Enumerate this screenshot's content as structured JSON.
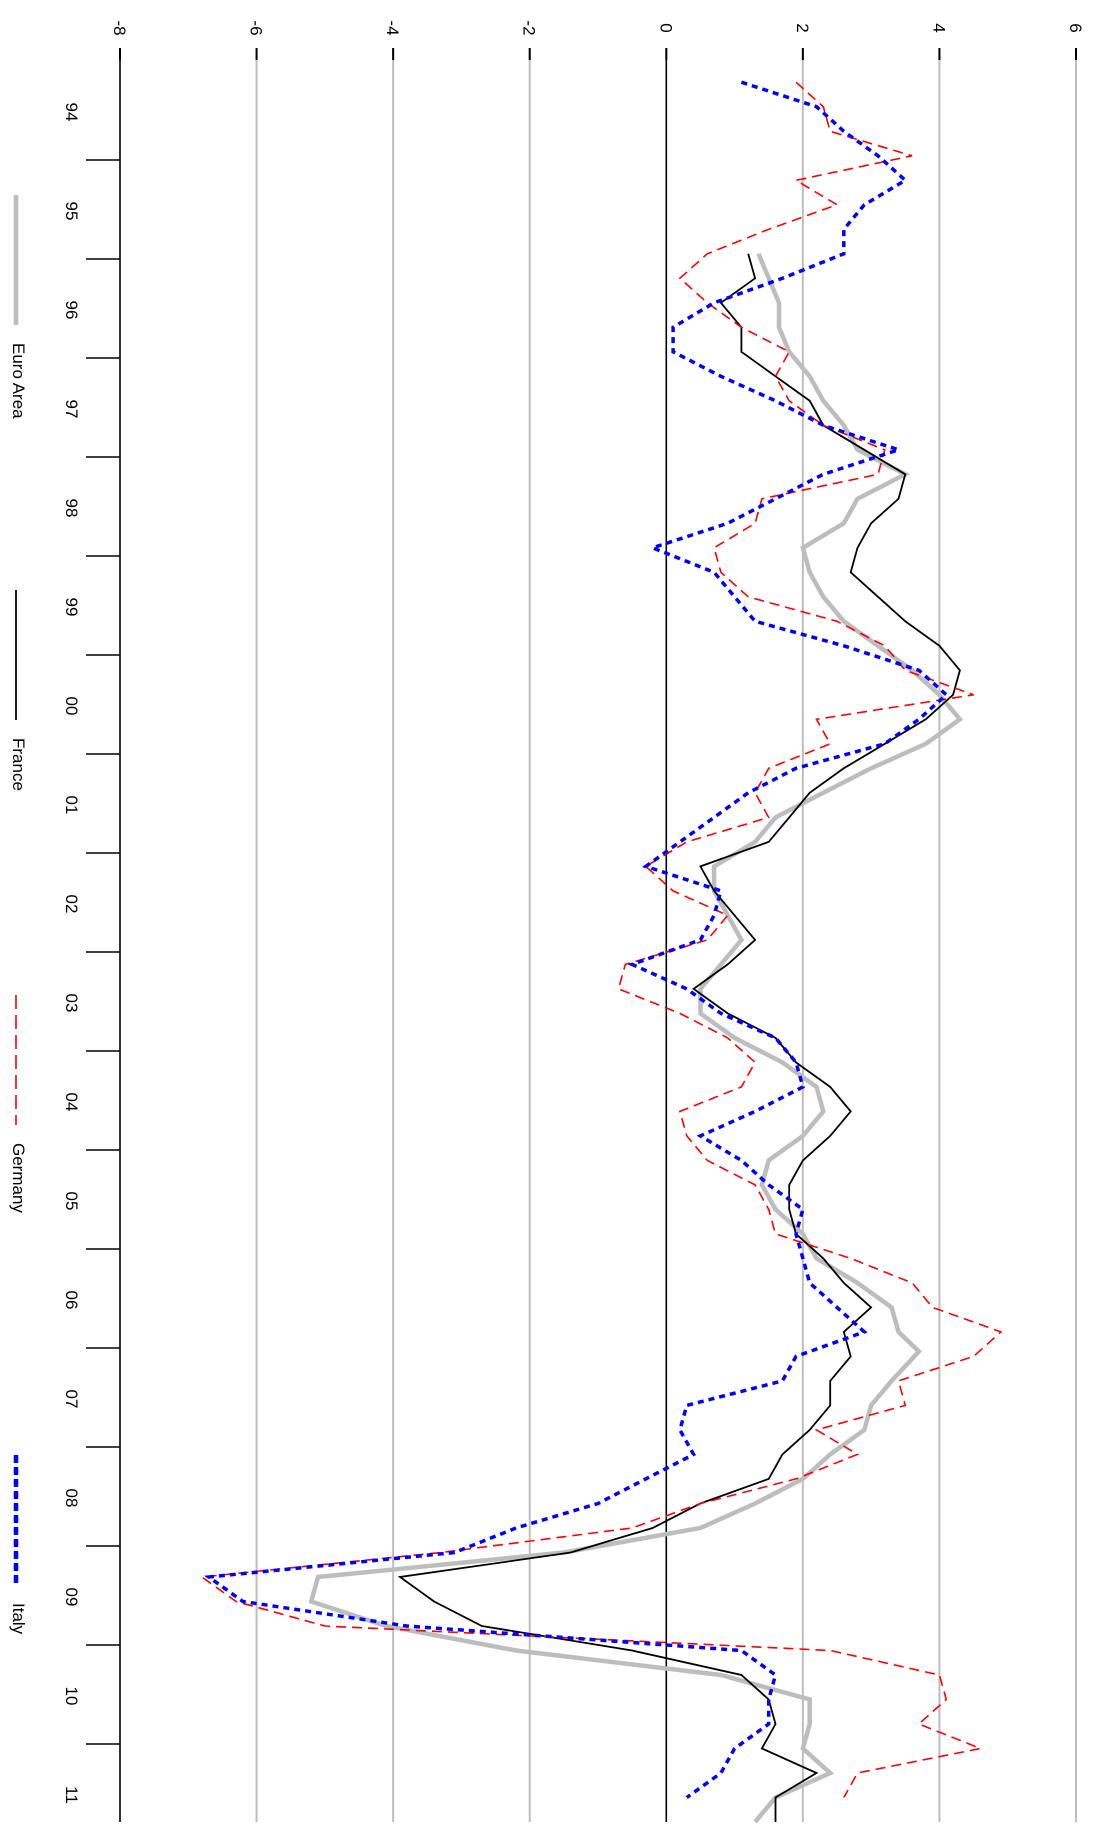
{
  "chart_data": {
    "type": "line",
    "orientation": "rotated-90-clockwise",
    "y_ticks": [
      "-8",
      "-6",
      "-4",
      "-2",
      "0",
      "2",
      "4",
      "6"
    ],
    "ylim": [
      -8,
      6
    ],
    "grid": true,
    "x_tick_labels": [
      "94",
      "95",
      "96",
      "97",
      "98",
      "99",
      "00",
      "01",
      "02",
      "03",
      "04",
      "05",
      "06",
      "07",
      "08",
      "09",
      "10",
      "11"
    ],
    "x_range": [
      1993.62,
      2011.75
    ],
    "legend_position": "bottom",
    "series": [
      {
        "name": "Euro Area",
        "color": "#bdbdbd",
        "style": "thick",
        "points": [
          [
            1995.75,
            1.35
          ],
          [
            1996.0,
            1.5
          ],
          [
            1996.25,
            1.65
          ],
          [
            1996.5,
            1.65
          ],
          [
            1996.75,
            1.8
          ],
          [
            1997.0,
            2.1
          ],
          [
            1997.25,
            2.3
          ],
          [
            1997.5,
            2.6
          ],
          [
            1997.75,
            2.8
          ],
          [
            1998.0,
            3.5
          ],
          [
            1998.25,
            2.8
          ],
          [
            1998.5,
            2.6
          ],
          [
            1998.75,
            2.0
          ],
          [
            1999.0,
            2.1
          ],
          [
            1999.25,
            2.3
          ],
          [
            1999.5,
            2.6
          ],
          [
            1999.75,
            3.1
          ],
          [
            2000.0,
            3.6
          ],
          [
            2000.25,
            4.0
          ],
          [
            2000.5,
            4.3
          ],
          [
            2000.75,
            3.8
          ],
          [
            2001.0,
            3.0
          ],
          [
            2001.25,
            2.3
          ],
          [
            2001.5,
            1.6
          ],
          [
            2001.75,
            1.3
          ],
          [
            2002.0,
            0.7
          ],
          [
            2002.25,
            0.7
          ],
          [
            2002.5,
            0.9
          ],
          [
            2002.75,
            1.1
          ],
          [
            2003.0,
            0.8
          ],
          [
            2003.25,
            0.5
          ],
          [
            2003.5,
            0.5
          ],
          [
            2003.75,
            1.0
          ],
          [
            2004.0,
            1.7
          ],
          [
            2004.25,
            2.2
          ],
          [
            2004.5,
            2.3
          ],
          [
            2004.75,
            2.0
          ],
          [
            2005.0,
            1.5
          ],
          [
            2005.25,
            1.4
          ],
          [
            2005.5,
            1.6
          ],
          [
            2005.75,
            2.0
          ],
          [
            2006.0,
            2.2
          ],
          [
            2006.25,
            2.8
          ],
          [
            2006.5,
            3.3
          ],
          [
            2006.75,
            3.4
          ],
          [
            2006.95,
            3.7
          ],
          [
            2007.25,
            3.3
          ],
          [
            2007.5,
            3.0
          ],
          [
            2007.75,
            2.9
          ],
          [
            2008.0,
            2.4
          ],
          [
            2008.25,
            2.0
          ],
          [
            2008.5,
            1.3
          ],
          [
            2008.75,
            0.5
          ],
          [
            2009.0,
            -1.5
          ],
          [
            2009.25,
            -5.1
          ],
          [
            2009.5,
            -5.2
          ],
          [
            2009.75,
            -4.1
          ],
          [
            2010.0,
            -2.2
          ],
          [
            2010.25,
            0.8
          ],
          [
            2010.5,
            2.1
          ],
          [
            2010.75,
            2.1
          ],
          [
            2011.0,
            2.0
          ],
          [
            2011.25,
            2.4
          ],
          [
            2011.5,
            1.6
          ],
          [
            2011.75,
            1.3
          ]
        ]
      },
      {
        "name": "France",
        "color": "#000000",
        "style": "solid",
        "points": [
          [
            1995.75,
            1.2
          ],
          [
            1996.0,
            1.3
          ],
          [
            1996.25,
            0.8
          ],
          [
            1996.5,
            1.1
          ],
          [
            1996.75,
            1.1
          ],
          [
            1997.0,
            1.6
          ],
          [
            1997.25,
            2.1
          ],
          [
            1997.5,
            2.3
          ],
          [
            1997.75,
            2.9
          ],
          [
            1998.0,
            3.5
          ],
          [
            1998.25,
            3.4
          ],
          [
            1998.5,
            3.0
          ],
          [
            1998.75,
            2.8
          ],
          [
            1999.0,
            2.7
          ],
          [
            1999.25,
            3.1
          ],
          [
            1999.5,
            3.5
          ],
          [
            1999.75,
            4.0
          ],
          [
            2000.0,
            4.3
          ],
          [
            2000.25,
            4.2
          ],
          [
            2000.5,
            3.8
          ],
          [
            2000.75,
            3.2
          ],
          [
            2001.0,
            2.6
          ],
          [
            2001.25,
            2.1
          ],
          [
            2001.5,
            1.8
          ],
          [
            2001.75,
            1.5
          ],
          [
            2002.0,
            0.5
          ],
          [
            2002.25,
            0.7
          ],
          [
            2002.5,
            1.0
          ],
          [
            2002.75,
            1.3
          ],
          [
            2003.0,
            0.9
          ],
          [
            2003.25,
            0.4
          ],
          [
            2003.5,
            0.9
          ],
          [
            2003.75,
            1.6
          ],
          [
            2004.0,
            1.9
          ],
          [
            2004.25,
            2.4
          ],
          [
            2004.5,
            2.7
          ],
          [
            2004.75,
            2.4
          ],
          [
            2005.0,
            2.0
          ],
          [
            2005.25,
            1.8
          ],
          [
            2005.5,
            1.8
          ],
          [
            2005.75,
            1.9
          ],
          [
            2006.0,
            2.3
          ],
          [
            2006.25,
            2.6
          ],
          [
            2006.5,
            3.0
          ],
          [
            2006.75,
            2.6
          ],
          [
            2007.0,
            2.7
          ],
          [
            2007.25,
            2.4
          ],
          [
            2007.5,
            2.4
          ],
          [
            2007.75,
            2.1
          ],
          [
            2008.0,
            1.7
          ],
          [
            2008.25,
            1.5
          ],
          [
            2008.5,
            0.5
          ],
          [
            2008.75,
            -0.2
          ],
          [
            2009.0,
            -1.4
          ],
          [
            2009.25,
            -3.9
          ],
          [
            2009.5,
            -3.4
          ],
          [
            2009.75,
            -2.7
          ],
          [
            2010.0,
            -0.5
          ],
          [
            2010.25,
            1.1
          ],
          [
            2010.5,
            1.5
          ],
          [
            2010.75,
            1.6
          ],
          [
            2011.0,
            1.4
          ],
          [
            2011.25,
            2.2
          ],
          [
            2011.5,
            1.6
          ],
          [
            2011.75,
            1.6
          ]
        ]
      },
      {
        "name": "Germany",
        "color": "#ff0000",
        "style": "dashed",
        "points": [
          [
            1994.0,
            1.9
          ],
          [
            1994.25,
            2.3
          ],
          [
            1994.5,
            2.4
          ],
          [
            1994.75,
            3.6
          ],
          [
            1995.0,
            1.9
          ],
          [
            1995.25,
            2.5
          ],
          [
            1995.5,
            1.5
          ],
          [
            1995.75,
            0.6
          ],
          [
            1996.0,
            0.2
          ],
          [
            1996.25,
            0.6
          ],
          [
            1996.5,
            1.1
          ],
          [
            1996.75,
            1.8
          ],
          [
            1997.0,
            1.6
          ],
          [
            1997.25,
            1.8
          ],
          [
            1997.5,
            2.3
          ],
          [
            1997.75,
            3.2
          ],
          [
            1998.0,
            3.1
          ],
          [
            1998.25,
            1.4
          ],
          [
            1998.5,
            1.3
          ],
          [
            1998.75,
            0.7
          ],
          [
            1999.0,
            0.8
          ],
          [
            1999.25,
            1.2
          ],
          [
            1999.5,
            2.5
          ],
          [
            1999.75,
            3.2
          ],
          [
            2000.0,
            3.5
          ],
          [
            2000.25,
            4.5
          ],
          [
            2000.5,
            2.2
          ],
          [
            2000.75,
            2.4
          ],
          [
            2001.0,
            1.5
          ],
          [
            2001.25,
            1.3
          ],
          [
            2001.5,
            1.5
          ],
          [
            2001.75,
            0.3
          ],
          [
            2002.0,
            -0.3
          ],
          [
            2002.25,
            0.1
          ],
          [
            2002.5,
            0.9
          ],
          [
            2002.75,
            0.6
          ],
          [
            2003.0,
            -0.6
          ],
          [
            2003.25,
            -0.7
          ],
          [
            2003.5,
            0.2
          ],
          [
            2003.75,
            0.9
          ],
          [
            2004.0,
            1.3
          ],
          [
            2004.25,
            1.1
          ],
          [
            2004.5,
            0.2
          ],
          [
            2004.75,
            0.3
          ],
          [
            2005.0,
            0.6
          ],
          [
            2005.25,
            1.3
          ],
          [
            2005.5,
            1.5
          ],
          [
            2005.75,
            1.6
          ],
          [
            2006.0,
            2.7
          ],
          [
            2006.25,
            3.6
          ],
          [
            2006.5,
            3.9
          ],
          [
            2006.75,
            4.9
          ],
          [
            2007.0,
            4.5
          ],
          [
            2007.25,
            3.4
          ],
          [
            2007.5,
            3.5
          ],
          [
            2007.75,
            2.2
          ],
          [
            2008.0,
            2.8
          ],
          [
            2008.25,
            1.9
          ],
          [
            2008.5,
            0.5
          ],
          [
            2008.75,
            -0.5
          ],
          [
            2009.0,
            -3.3
          ],
          [
            2009.25,
            -6.8
          ],
          [
            2009.5,
            -6.3
          ],
          [
            2009.75,
            -5.0
          ],
          [
            2010.0,
            2.4
          ],
          [
            2010.25,
            4.0
          ],
          [
            2010.5,
            4.1
          ],
          [
            2010.75,
            3.7
          ],
          [
            2011.0,
            4.6
          ],
          [
            2011.25,
            2.8
          ],
          [
            2011.5,
            2.6
          ]
        ]
      },
      {
        "name": "Italy",
        "color": "#0000ff",
        "style": "dotted",
        "points": [
          [
            1994.0,
            1.1
          ],
          [
            1994.25,
            2.2
          ],
          [
            1994.5,
            2.6
          ],
          [
            1994.75,
            3.1
          ],
          [
            1995.0,
            3.5
          ],
          [
            1995.25,
            2.9
          ],
          [
            1995.5,
            2.6
          ],
          [
            1995.75,
            2.6
          ],
          [
            1996.0,
            1.7
          ],
          [
            1996.25,
            0.7
          ],
          [
            1996.5,
            0.1
          ],
          [
            1996.75,
            0.1
          ],
          [
            1997.0,
            0.8
          ],
          [
            1997.25,
            1.6
          ],
          [
            1997.5,
            2.3
          ],
          [
            1997.75,
            3.4
          ],
          [
            1998.0,
            2.3
          ],
          [
            1998.25,
            1.6
          ],
          [
            1998.5,
            0.9
          ],
          [
            1998.75,
            -0.2
          ],
          [
            1999.0,
            0.7
          ],
          [
            1999.25,
            1.0
          ],
          [
            1999.5,
            1.3
          ],
          [
            1999.75,
            2.6
          ],
          [
            2000.0,
            3.7
          ],
          [
            2000.25,
            4.1
          ],
          [
            2000.5,
            3.7
          ],
          [
            2000.75,
            3.2
          ],
          [
            2001.0,
            1.9
          ],
          [
            2001.25,
            1.2
          ],
          [
            2001.5,
            0.7
          ],
          [
            2001.75,
            0.2
          ],
          [
            2002.0,
            -0.3
          ],
          [
            2002.25,
            0.8
          ],
          [
            2002.5,
            0.7
          ],
          [
            2002.75,
            0.5
          ],
          [
            2003.0,
            -0.5
          ],
          [
            2003.25,
            0.3
          ],
          [
            2003.5,
            0.8
          ],
          [
            2003.75,
            1.6
          ],
          [
            2004.0,
            1.9
          ],
          [
            2004.25,
            2.0
          ],
          [
            2004.5,
            1.3
          ],
          [
            2004.75,
            0.5
          ],
          [
            2005.0,
            1.1
          ],
          [
            2005.25,
            1.5
          ],
          [
            2005.5,
            2.0
          ],
          [
            2005.75,
            1.9
          ],
          [
            2006.0,
            2.0
          ],
          [
            2006.25,
            2.1
          ],
          [
            2006.5,
            2.5
          ],
          [
            2006.75,
            2.9
          ],
          [
            2007.0,
            1.9
          ],
          [
            2007.25,
            1.7
          ],
          [
            2007.5,
            0.3
          ],
          [
            2007.75,
            0.2
          ],
          [
            2008.0,
            0.4
          ],
          [
            2008.25,
            -0.3
          ],
          [
            2008.5,
            -1.0
          ],
          [
            2008.75,
            -2.2
          ],
          [
            2009.0,
            -3.1
          ],
          [
            2009.25,
            -6.7
          ],
          [
            2009.5,
            -6.2
          ],
          [
            2009.75,
            -3.8
          ],
          [
            2010.0,
            1.1
          ],
          [
            2010.25,
            1.6
          ],
          [
            2010.5,
            1.5
          ],
          [
            2010.75,
            1.5
          ],
          [
            2011.0,
            1.0
          ],
          [
            2011.25,
            0.8
          ],
          [
            2011.5,
            0.3
          ]
        ]
      }
    ]
  }
}
